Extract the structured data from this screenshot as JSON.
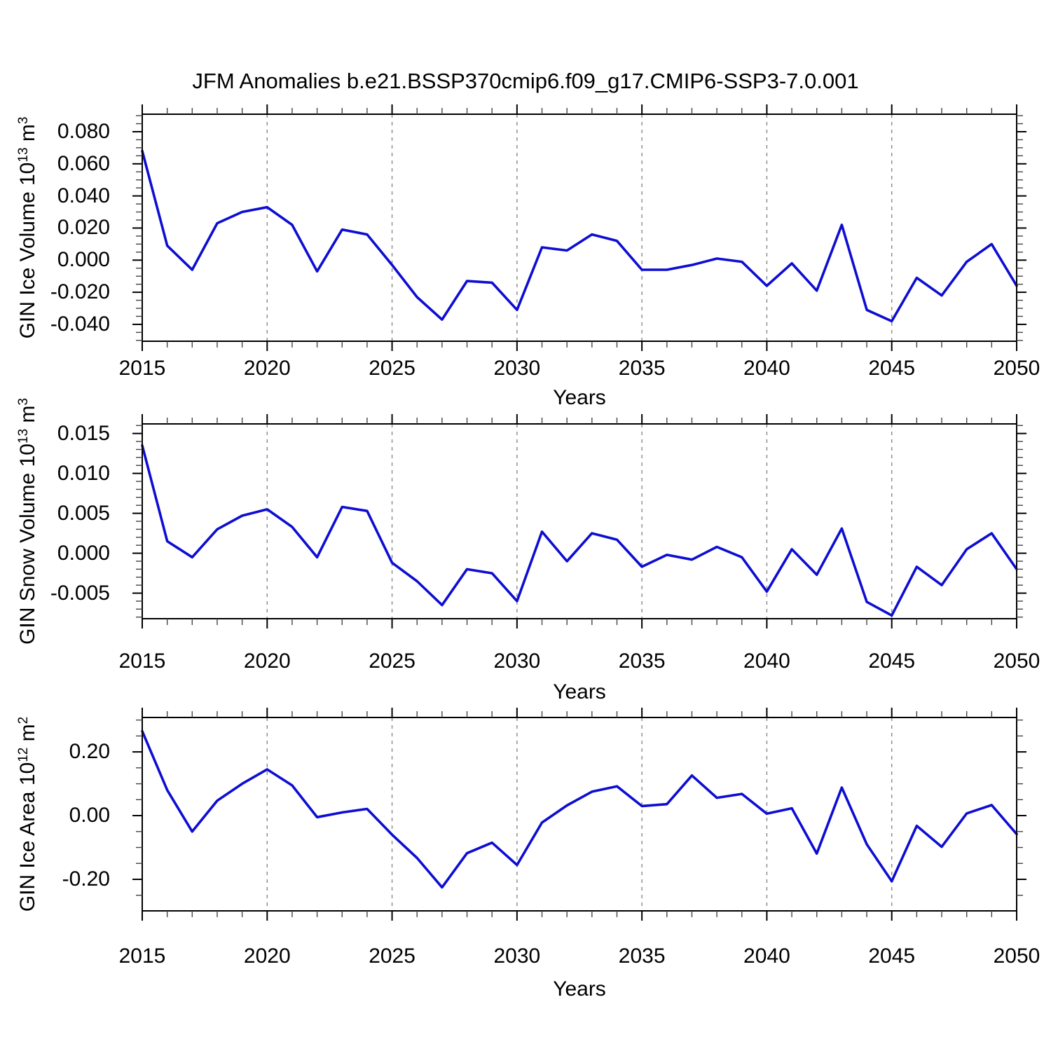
{
  "title": "JFM Anomalies b.e21.BSSP370cmip6.f09_g17.CMIP6-SSP3-7.0.001",
  "colors": {
    "line": "#0d0dd3",
    "grid": "#888888",
    "frame": "#000000",
    "minor_tick": "#444444",
    "text": "#000000",
    "background": "#ffffff"
  },
  "x_axis": {
    "label": "Years",
    "min": 2015,
    "max": 2050,
    "tick_labels": [
      "2015",
      "2020",
      "2025",
      "2030",
      "2035",
      "2040",
      "2045",
      "2050"
    ],
    "major_tick_years": [
      2015,
      2020,
      2025,
      2030,
      2035,
      2040,
      2045,
      2050
    ],
    "minor_tick_step": 1,
    "grid_years": [
      2020,
      2025,
      2030,
      2035,
      2040,
      2045
    ]
  },
  "years": [
    2015,
    2016,
    2017,
    2018,
    2019,
    2020,
    2021,
    2022,
    2023,
    2024,
    2025,
    2026,
    2027,
    2028,
    2029,
    2030,
    2031,
    2032,
    2033,
    2034,
    2035,
    2036,
    2037,
    2038,
    2039,
    2040,
    2041,
    2042,
    2043,
    2044,
    2045,
    2046,
    2047,
    2048,
    2049,
    2050
  ],
  "chart_data": [
    {
      "type": "line",
      "id": "gin-ice-volume",
      "ylabel": {
        "text": "GIN Ice Volume",
        "base": "10",
        "exp": "13",
        "unit": "m",
        "unit_exp": "3"
      },
      "ylim": [
        -0.0505,
        0.0909
      ],
      "y_minor_step": 0.005,
      "yticks": [
        {
          "v": 0.08,
          "label": "0.080"
        },
        {
          "v": 0.06,
          "label": "0.060"
        },
        {
          "v": 0.04,
          "label": "0.040"
        },
        {
          "v": 0.02,
          "label": "0.020"
        },
        {
          "v": 0.0,
          "label": "0.000"
        },
        {
          "v": -0.02,
          "label": "-0.020"
        },
        {
          "v": -0.04,
          "label": "-0.040"
        }
      ],
      "values": [
        0.068,
        0.009,
        -0.006,
        0.023,
        0.03,
        0.033,
        0.022,
        -0.007,
        0.019,
        0.016,
        -0.003,
        -0.023,
        -0.037,
        -0.013,
        -0.014,
        -0.031,
        0.008,
        0.006,
        0.016,
        0.012,
        -0.006,
        -0.006,
        -0.003,
        0.001,
        -0.001,
        -0.016,
        -0.002,
        -0.019,
        0.022,
        -0.031,
        -0.038,
        -0.011,
        -0.022,
        -0.001,
        0.01,
        -0.016
      ]
    },
    {
      "type": "line",
      "id": "gin-snow-volume",
      "ylabel": {
        "text": "GIN Snow Volume",
        "base": "10",
        "exp": "13",
        "unit": "m",
        "unit_exp": "3"
      },
      "ylim": [
        -0.0082,
        0.0162
      ],
      "y_minor_step": 0.001,
      "yticks": [
        {
          "v": 0.015,
          "label": "0.015"
        },
        {
          "v": 0.01,
          "label": "0.010"
        },
        {
          "v": 0.005,
          "label": "0.005"
        },
        {
          "v": 0.0,
          "label": "0.000"
        },
        {
          "v": -0.005,
          "label": "-0.005"
        }
      ],
      "values": [
        0.0135,
        0.0015,
        -0.0005,
        0.003,
        0.0047,
        0.0055,
        0.0033,
        -0.0005,
        0.0058,
        0.0053,
        -0.0012,
        -0.0035,
        -0.0065,
        -0.002,
        -0.0025,
        -0.006,
        0.0027,
        -0.001,
        0.0025,
        0.0017,
        -0.0017,
        -0.0002,
        -0.0008,
        0.0008,
        -0.0005,
        -0.0048,
        0.0005,
        -0.0027,
        0.0031,
        -0.0061,
        -0.0078,
        -0.0017,
        -0.004,
        0.0005,
        0.0025,
        -0.002
      ]
    },
    {
      "type": "line",
      "id": "gin-ice-area",
      "ylabel": {
        "text": "GIN Ice Area",
        "base": "10",
        "exp": "12",
        "unit": "m",
        "unit_exp": "2"
      },
      "ylim": [
        -0.299,
        0.308
      ],
      "y_minor_step": 0.05,
      "yticks": [
        {
          "v": 0.2,
          "label": "0.20"
        },
        {
          "v": 0.0,
          "label": "0.00"
        },
        {
          "v": -0.2,
          "label": "-0.20"
        }
      ],
      "values": [
        0.265,
        0.08,
        -0.05,
        0.047,
        0.1,
        0.145,
        0.095,
        -0.005,
        0.01,
        0.021,
        -0.06,
        -0.133,
        -0.225,
        -0.118,
        -0.085,
        -0.155,
        -0.022,
        0.032,
        0.075,
        0.092,
        0.03,
        0.036,
        0.126,
        0.056,
        0.068,
        0.006,
        0.023,
        -0.119,
        0.088,
        -0.09,
        -0.206,
        -0.032,
        -0.098,
        0.007,
        0.033,
        -0.058
      ]
    }
  ]
}
